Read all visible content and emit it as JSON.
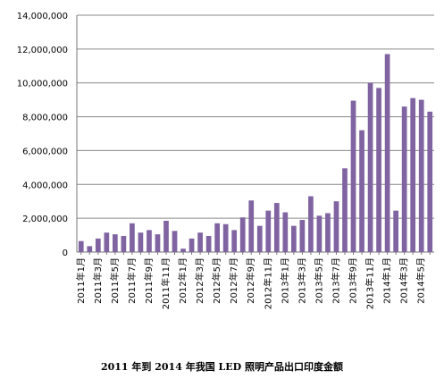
{
  "caption": "2011 年到 2014 年我国 LED 照明产品出口印度金额",
  "chart_data": {
    "type": "bar",
    "title": "",
    "xlabel": "",
    "ylabel": "",
    "ylim": [
      0,
      14000000
    ],
    "yticks": [
      0,
      2000000,
      4000000,
      6000000,
      8000000,
      10000000,
      12000000,
      14000000
    ],
    "ytick_labels": [
      "0",
      "2,000,000",
      "4,000,000",
      "6,000,000",
      "8,000,000",
      "10,000,000",
      "12,000,000",
      "14,000,000"
    ],
    "grid": true,
    "bar_color": "#8064a2",
    "categories": [
      "2011年1月",
      "2011年2月",
      "2011年3月",
      "2011年4月",
      "2011年5月",
      "2011年6月",
      "2011年7月",
      "2011年8月",
      "2011年9月",
      "2011年10月",
      "2011年11月",
      "2011年12月",
      "2012年1月",
      "2012年2月",
      "2012年3月",
      "2012年4月",
      "2012年5月",
      "2012年6月",
      "2012年7月",
      "2012年8月",
      "2012年9月",
      "2012年10月",
      "2012年11月",
      "2012年12月",
      "2013年1月",
      "2013年2月",
      "2013年3月",
      "2013年4月",
      "2013年5月",
      "2013年6月",
      "2013年7月",
      "2013年8月",
      "2013年9月",
      "2013年10月",
      "2013年11月",
      "2013年12月",
      "2014年1月",
      "2014年2月",
      "2014年3月",
      "2014年4月",
      "2014年5月",
      "2014年6月"
    ],
    "tick_labels": [
      "2011年1月",
      "",
      "2011年3月",
      "",
      "2011年5月",
      "",
      "2011年7月",
      "",
      "2011年9月",
      "",
      "2011年11月",
      "",
      "2012年1月",
      "",
      "2012年3月",
      "",
      "2012年5月",
      "",
      "2012年7月",
      "",
      "2012年9月",
      "",
      "2012年11月",
      "",
      "2013年1月",
      "",
      "2013年3月",
      "",
      "2013年5月",
      "",
      "2013年7月",
      "",
      "2013年9月",
      "",
      "2013年11月",
      "",
      "2014年1月",
      "",
      "2014年3月",
      "",
      "2014年5月",
      ""
    ],
    "values": [
      650000,
      350000,
      800000,
      1150000,
      1050000,
      950000,
      1700000,
      1150000,
      1300000,
      1050000,
      1850000,
      1250000,
      200000,
      800000,
      1150000,
      950000,
      1700000,
      1650000,
      1300000,
      2050000,
      3050000,
      1550000,
      2450000,
      2900000,
      2350000,
      1550000,
      1900000,
      3300000,
      2150000,
      2300000,
      3000000,
      4950000,
      8950000,
      7200000,
      10000000,
      9700000,
      11700000,
      2450000,
      8600000,
      9100000,
      9000000,
      8300000
    ]
  }
}
